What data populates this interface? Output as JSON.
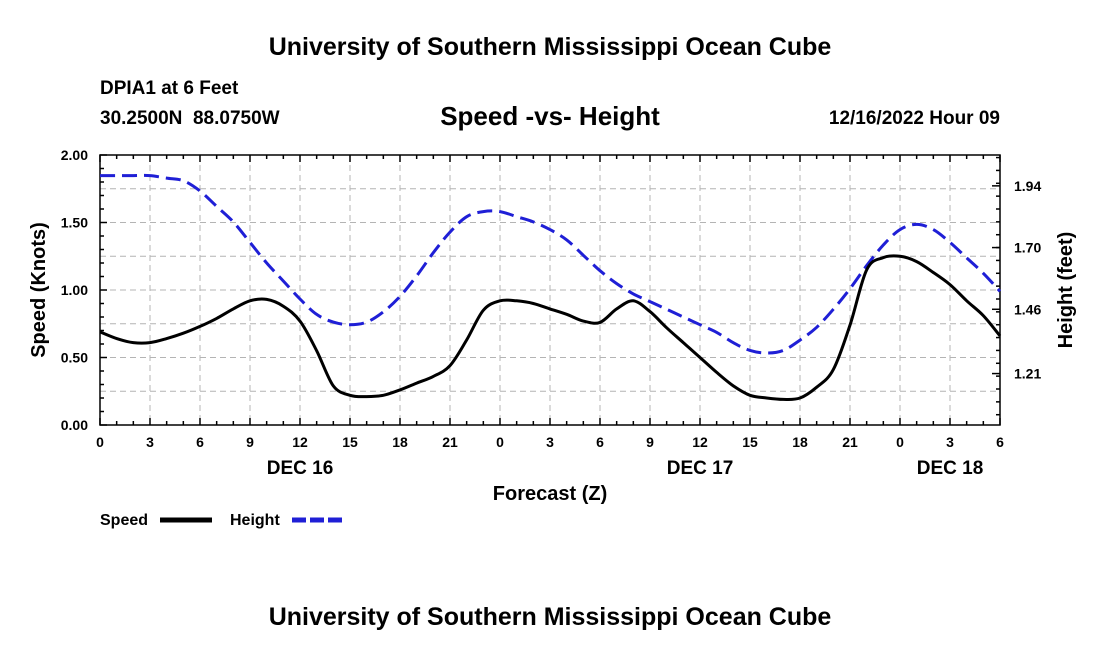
{
  "page_title": "University of Southern Mississippi Ocean Cube",
  "footer_title": "University of Southern Mississippi Ocean Cube",
  "station": {
    "name": "DPIA1 at 6 Feet",
    "coords": "30.2500N  88.0750W",
    "datetime": "12/16/2022 Hour 09"
  },
  "colors": {
    "speed": "#000000",
    "height": "#1f1fd6",
    "grid": "#b4b4b4"
  },
  "chart_data": {
    "type": "line",
    "title": "Speed -vs- Height",
    "xlabel": "Forecast (Z)",
    "ylabel": "Speed (Knots)",
    "y2label": "Height (feet)",
    "xlim": [
      0,
      54
    ],
    "ylim": [
      0,
      2
    ],
    "y2lim": [
      1.01,
      2.06
    ],
    "x_ticks": [
      0,
      3,
      6,
      9,
      12,
      15,
      18,
      21,
      24,
      27,
      30,
      33,
      36,
      39,
      42,
      45,
      48,
      51,
      54
    ],
    "x_tick_labels": [
      "0",
      "3",
      "6",
      "9",
      "12",
      "15",
      "18",
      "21",
      "0",
      "3",
      "6",
      "9",
      "12",
      "15",
      "18",
      "21",
      "0",
      "3",
      "6"
    ],
    "y_ticks": [
      0,
      0.5,
      1,
      1.5,
      2
    ],
    "y_tick_labels": [
      "0.00",
      "0.50",
      "1.00",
      "1.50",
      "2.00"
    ],
    "y2_ticks": [
      1.21,
      1.46,
      1.7,
      1.94
    ],
    "y2_tick_labels": [
      "1.21",
      "1.46",
      "1.70",
      "1.94"
    ],
    "date_labels": [
      {
        "x": 12,
        "text": "DEC 16"
      },
      {
        "x": 36,
        "text": "DEC 17"
      },
      {
        "x": 51,
        "text": "DEC 18"
      }
    ],
    "legend": [
      {
        "name": "Speed",
        "series": "speed"
      },
      {
        "name": "Height",
        "series": "height"
      }
    ],
    "series": [
      {
        "name": "Speed",
        "axis": "left",
        "style": "solid",
        "x": [
          0,
          1,
          2,
          3,
          4,
          5,
          6,
          7,
          8,
          9,
          10,
          11,
          12,
          13,
          14,
          15,
          16,
          17,
          18,
          19,
          20,
          21,
          22,
          23,
          24,
          25,
          26,
          27,
          28,
          29,
          30,
          31,
          32,
          33,
          34,
          35,
          36,
          37,
          38,
          39,
          40,
          41,
          42,
          43,
          44,
          45,
          46,
          47,
          48,
          49,
          50,
          51,
          52,
          53,
          54
        ],
        "values": [
          0.69,
          0.64,
          0.61,
          0.61,
          0.64,
          0.68,
          0.73,
          0.79,
          0.86,
          0.92,
          0.93,
          0.88,
          0.77,
          0.55,
          0.29,
          0.22,
          0.21,
          0.22,
          0.26,
          0.31,
          0.36,
          0.44,
          0.63,
          0.85,
          0.92,
          0.92,
          0.9,
          0.86,
          0.82,
          0.77,
          0.76,
          0.86,
          0.92,
          0.84,
          0.72,
          0.61,
          0.5,
          0.39,
          0.29,
          0.22,
          0.2,
          0.19,
          0.2,
          0.28,
          0.41,
          0.74,
          1.15,
          1.24,
          1.25,
          1.21,
          1.13,
          1.04,
          0.92,
          0.81,
          0.66
        ]
      },
      {
        "name": "Height",
        "axis": "right",
        "style": "dashed",
        "x": [
          0,
          1,
          2,
          3,
          4,
          5,
          6,
          7,
          8,
          9,
          10,
          11,
          12,
          13,
          14,
          15,
          16,
          17,
          18,
          19,
          20,
          21,
          22,
          23,
          24,
          25,
          26,
          27,
          28,
          29,
          30,
          31,
          32,
          33,
          34,
          35,
          36,
          37,
          38,
          39,
          40,
          41,
          42,
          43,
          44,
          45,
          46,
          47,
          48,
          49,
          50,
          51,
          52,
          53,
          54
        ],
        "values": [
          1.98,
          1.98,
          1.98,
          1.98,
          1.97,
          1.96,
          1.92,
          1.86,
          1.8,
          1.72,
          1.64,
          1.57,
          1.5,
          1.44,
          1.41,
          1.4,
          1.41,
          1.45,
          1.51,
          1.59,
          1.68,
          1.76,
          1.82,
          1.84,
          1.84,
          1.82,
          1.8,
          1.77,
          1.73,
          1.67,
          1.61,
          1.56,
          1.52,
          1.49,
          1.46,
          1.43,
          1.4,
          1.37,
          1.33,
          1.3,
          1.29,
          1.3,
          1.34,
          1.39,
          1.46,
          1.54,
          1.63,
          1.71,
          1.77,
          1.79,
          1.77,
          1.72,
          1.66,
          1.6,
          1.53
        ]
      }
    ]
  }
}
